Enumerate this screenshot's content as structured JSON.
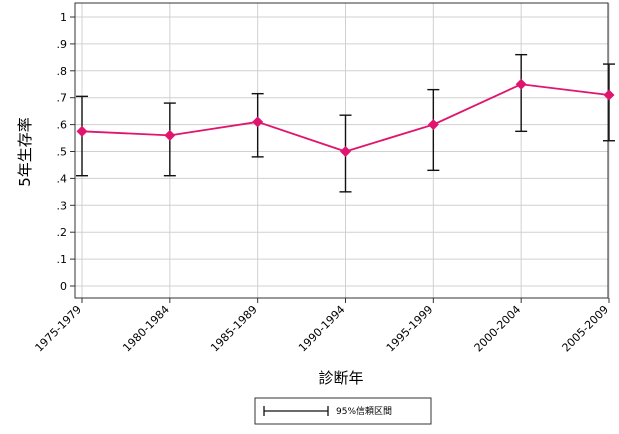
{
  "chart_data": {
    "type": "line",
    "title": "",
    "xlabel": "診断年",
    "ylabel": "5年生存率",
    "categories": [
      "1975-1979",
      "1980-1984",
      "1985-1989",
      "1990-1994",
      "1995-1999",
      "2000-2004",
      "2005-2009"
    ],
    "yticks": [
      "0",
      ".1",
      ".2",
      ".3",
      ".4",
      ".5",
      ".6",
      ".7",
      ".8",
      ".9",
      "1"
    ],
    "ylim": [
      0,
      1
    ],
    "series": [
      {
        "values": [
          0.575,
          0.56,
          0.61,
          0.5,
          0.6,
          0.75,
          0.71
        ],
        "ci_low": [
          0.41,
          0.41,
          0.48,
          0.35,
          0.43,
          0.575,
          0.54
        ],
        "ci_high": [
          0.705,
          0.68,
          0.715,
          0.635,
          0.73,
          0.86,
          0.825
        ],
        "color": "#e0156e"
      }
    ],
    "legend": {
      "position": "bottom",
      "entries": [
        "95%信頼区間"
      ]
    },
    "grid": true
  }
}
